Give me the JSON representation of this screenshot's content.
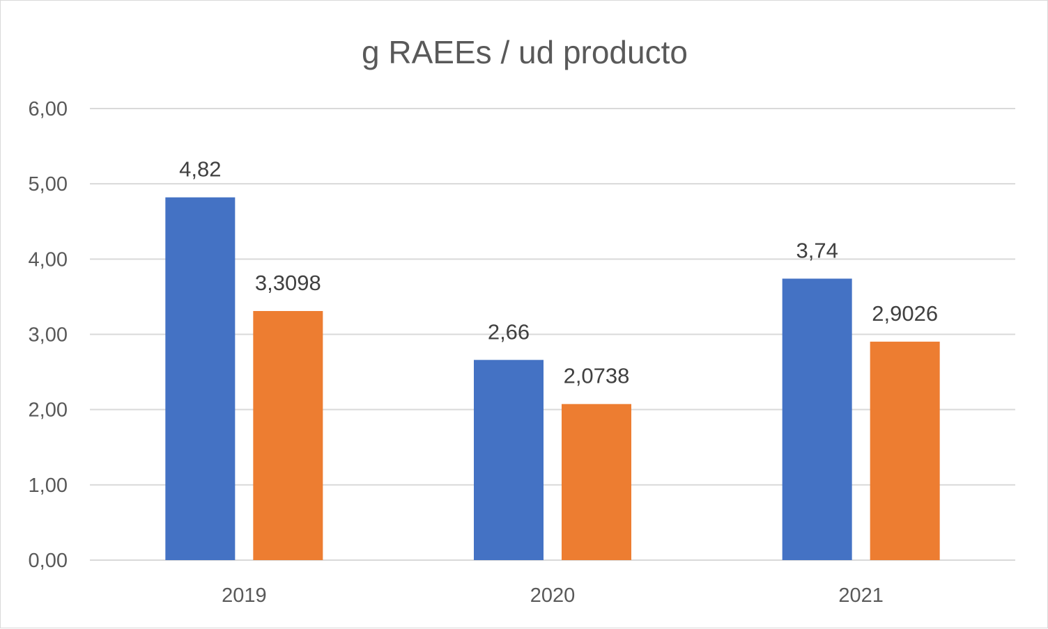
{
  "chart_data": {
    "type": "bar",
    "title": "g RAEEs / ud producto",
    "xlabel": "",
    "ylabel": "",
    "categories": [
      "2019",
      "2020",
      "2021"
    ],
    "series": [
      {
        "values": [
          4.82,
          2.66,
          3.74
        ],
        "labels": [
          "4,82",
          "2,66",
          "3,74"
        ],
        "color": "#4472c4"
      },
      {
        "values": [
          3.3098,
          2.0738,
          2.9026
        ],
        "labels": [
          "3,3098",
          "2,0738",
          "2,9026"
        ],
        "color": "#ed7d31"
      }
    ],
    "ylim": [
      0,
      6
    ],
    "yticks": [
      "0,00",
      "1,00",
      "2,00",
      "3,00",
      "4,00",
      "5,00",
      "6,00"
    ],
    "grid": true,
    "legend": "none"
  }
}
